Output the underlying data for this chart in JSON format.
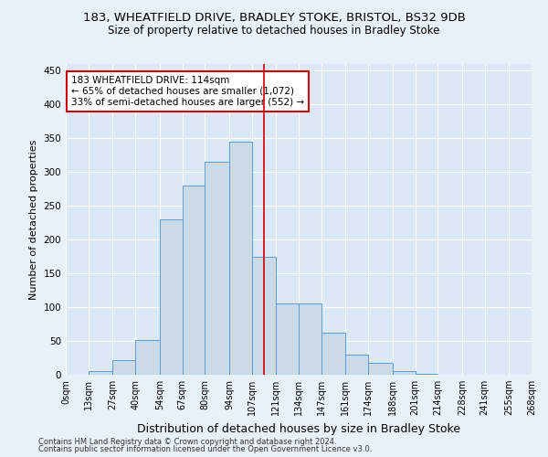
{
  "title1": "183, WHEATFIELD DRIVE, BRADLEY STOKE, BRISTOL, BS32 9DB",
  "title2": "Size of property relative to detached houses in Bradley Stoke",
  "xlabel": "Distribution of detached houses by size in Bradley Stoke",
  "ylabel": "Number of detached properties",
  "footer1": "Contains HM Land Registry data © Crown copyright and database right 2024.",
  "footer2": "Contains public sector information licensed under the Open Government Licence v3.0.",
  "bin_labels": [
    "0sqm",
    "13sqm",
    "27sqm",
    "40sqm",
    "54sqm",
    "67sqm",
    "80sqm",
    "94sqm",
    "107sqm",
    "121sqm",
    "134sqm",
    "147sqm",
    "161sqm",
    "174sqm",
    "188sqm",
    "201sqm",
    "214sqm",
    "228sqm",
    "241sqm",
    "255sqm",
    "268sqm"
  ],
  "bar_values": [
    0,
    5,
    22,
    52,
    230,
    280,
    315,
    345,
    175,
    105,
    105,
    62,
    30,
    18,
    5,
    2,
    0,
    0,
    0,
    0
  ],
  "bin_edges": [
    0,
    13,
    27,
    40,
    54,
    67,
    80,
    94,
    107,
    121,
    134,
    147,
    161,
    174,
    188,
    201,
    214,
    228,
    241,
    255,
    268
  ],
  "bar_color": "#ccd9e8",
  "bar_edge_color": "#5b9bd5",
  "vline_x": 114,
  "vline_color": "#cc0000",
  "annotation_text": "183 WHEATFIELD DRIVE: 114sqm\n← 65% of detached houses are smaller (1,072)\n33% of semi-detached houses are larger (552) →",
  "annotation_box_color": "#cc0000",
  "ylim": [
    0,
    460
  ],
  "yticks": [
    0,
    50,
    100,
    150,
    200,
    250,
    300,
    350,
    400,
    450
  ],
  "bg_color": "#e8f0f8",
  "plot_bg_color": "#dce8f5",
  "grid_color": "#ffffff",
  "title1_fontsize": 9.5,
  "title2_fontsize": 8.5,
  "xlabel_fontsize": 9,
  "ylabel_fontsize": 8,
  "annotation_fontsize": 7.5,
  "tick_fontsize": 7,
  "ytick_fontsize": 7.5,
  "footer_fontsize": 6
}
